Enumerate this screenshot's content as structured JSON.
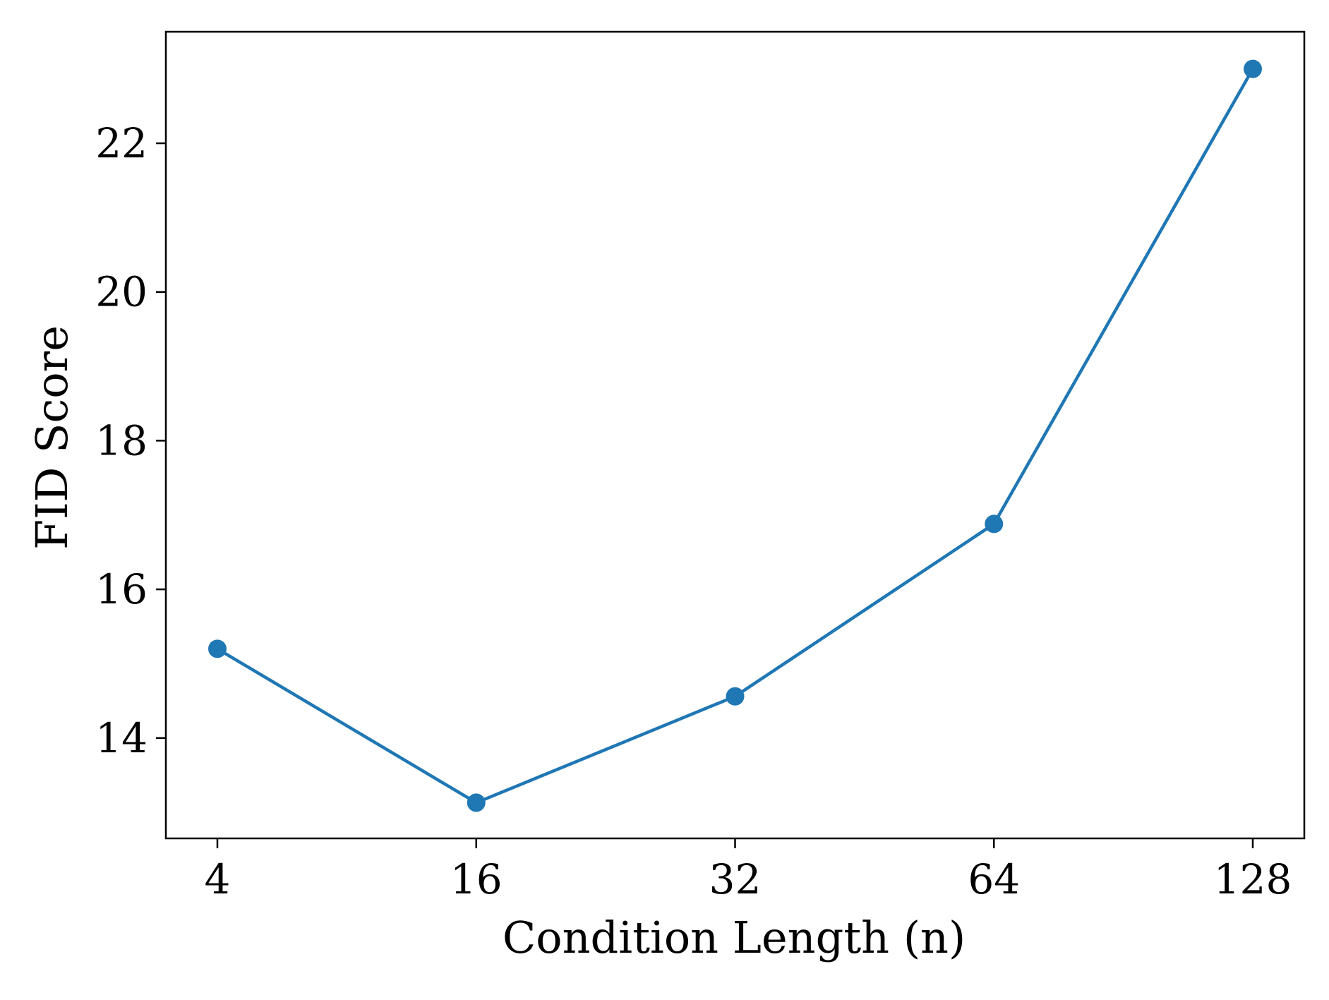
{
  "chart_data": {
    "type": "line",
    "categories": [
      "4",
      "16",
      "32",
      "64",
      "128"
    ],
    "series": [
      {
        "values": [
          15.2,
          13.13,
          14.56,
          16.88,
          23.0
        ]
      }
    ],
    "title": "",
    "xlabel": "Condition Length (n)",
    "ylabel": "FID Score",
    "ylim": [
      12.65,
      23.5
    ],
    "yticks": [
      14,
      16,
      18,
      20,
      22
    ],
    "grid": false,
    "legend": "none",
    "colors": {
      "line": "#1f77b4",
      "marker": "#1f77b4",
      "axes": "#000000"
    }
  }
}
